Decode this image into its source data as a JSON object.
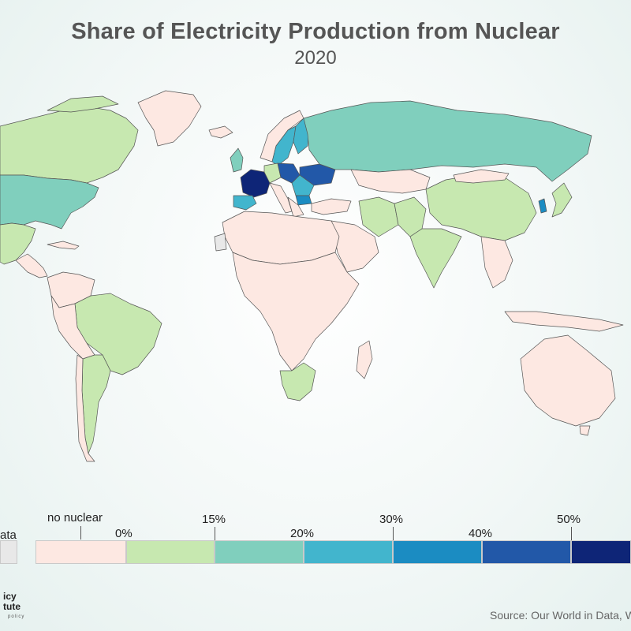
{
  "title": "Share of Electricity Production from Nuclear",
  "subtitle": "2020",
  "legend": {
    "no_data_label": "ata",
    "no_nuclear_label": "no nuclear",
    "bins": [
      {
        "label": "0%",
        "color": "#c7e8b0"
      },
      {
        "label": "15%",
        "color": "#80cfbd"
      },
      {
        "label": "20%",
        "color": "#42b5cd"
      },
      {
        "label": "30%",
        "color": "#1b8cc2"
      },
      {
        "label": "40%",
        "color": "#2258a8"
      },
      {
        "label": "50%",
        "color": "#0e2577"
      }
    ],
    "no_data_color": "#e8e8e8",
    "no_nuclear_color": "#fde8e2"
  },
  "logo": {
    "line1": "icy",
    "line2": "tute",
    "line3": "policy"
  },
  "source": "Source: Our World in Data, W",
  "colors": {
    "no_nuclear": "#fde8e2",
    "low": "#c7e8b0",
    "mid": "#80cfbd",
    "upper_mid": "#42b5cd",
    "high": "#1b8cc2",
    "very_high": "#2258a8",
    "max": "#0e2577",
    "no_data": "#e8e8e8",
    "border": "#555555"
  }
}
